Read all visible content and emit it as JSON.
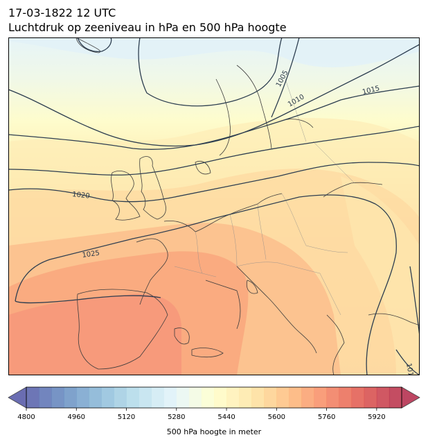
{
  "title": {
    "line1": "17-03-1822 12 UTC",
    "line2": "Luchtdruk op zeeniveau in hPa en 500 hPa hoogte"
  },
  "map": {
    "contour_color": "#2d3e50",
    "isobars": [
      {
        "label": "1005"
      },
      {
        "label": "1010"
      },
      {
        "label": "1015"
      },
      {
        "label": "1020"
      },
      {
        "label": "1025"
      },
      {
        "label": "101"
      }
    ]
  },
  "colorbar": {
    "label": "500 hPa hoogte in meter",
    "min": 4800,
    "max": 6000,
    "step": 40,
    "ticks": [
      "4800",
      "4960",
      "5120",
      "5280",
      "5440",
      "5600",
      "5760",
      "5920"
    ],
    "colormap": "RdYlBu_r"
  }
}
